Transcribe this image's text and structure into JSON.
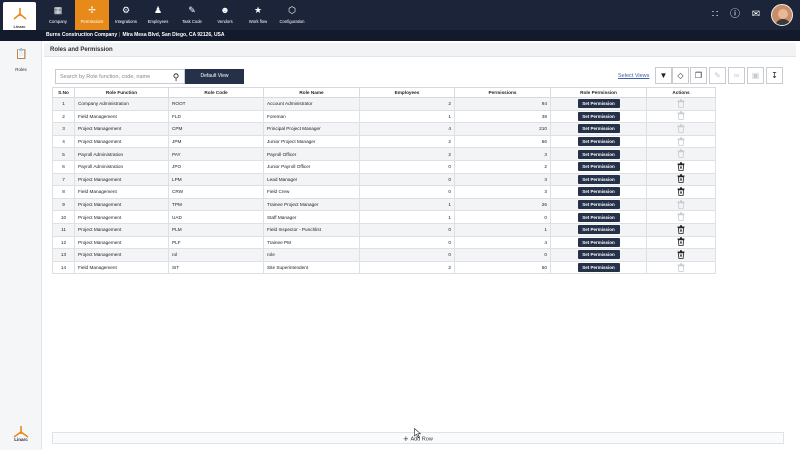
{
  "brand": {
    "name": "Linarc"
  },
  "nav": [
    {
      "label": "Company",
      "icon": "building-icon",
      "active": false
    },
    {
      "label": "Permissions",
      "icon": "permissions-icon",
      "active": true
    },
    {
      "label": "Integrations",
      "icon": "integrations-icon",
      "active": false
    },
    {
      "label": "Employees",
      "icon": "employees-icon",
      "active": false
    },
    {
      "label": "Task Code",
      "icon": "task-code-icon",
      "active": false
    },
    {
      "label": "Vendors",
      "icon": "vendors-icon",
      "active": false
    },
    {
      "label": "Work flow",
      "icon": "workflow-icon",
      "active": false
    },
    {
      "label": "Configuration",
      "icon": "configuration-icon",
      "active": false
    }
  ],
  "company": {
    "name": "Burns Construction Company",
    "address": "Mira Mesa Blvd, San Diego, CA 92126, USA"
  },
  "sidebar": {
    "roles_label": "Roles"
  },
  "page": {
    "title": "Roles and Permission"
  },
  "search": {
    "placeholder": "Search by Role function, code, name"
  },
  "toolbar": {
    "default_view": "Default View",
    "select_views": "Select Views"
  },
  "table": {
    "headers": [
      "S.No",
      "Role Function",
      "Role Code",
      "Role Name",
      "Employees",
      "Permissions",
      "Role Permission",
      "Actions"
    ],
    "button_label": "Set Permission",
    "rows": [
      {
        "sno": "1",
        "function": "Company Administration",
        "code": "ROOT",
        "name": "Account Administrator",
        "employees": "2",
        "permissions": "94",
        "delete_enabled": false
      },
      {
        "sno": "2",
        "function": "Field Management",
        "code": "FLD",
        "name": "Foreman",
        "employees": "1",
        "permissions": "38",
        "delete_enabled": false
      },
      {
        "sno": "3",
        "function": "Project Management",
        "code": "CPM",
        "name": "Principal Project Manager",
        "employees": "4",
        "permissions": "210",
        "delete_enabled": false
      },
      {
        "sno": "4",
        "function": "Project Management",
        "code": "JPM",
        "name": "Junior Project Manager",
        "employees": "2",
        "permissions": "66",
        "delete_enabled": false
      },
      {
        "sno": "5",
        "function": "Payroll Administration",
        "code": "PAY",
        "name": "Payroll Officer",
        "employees": "2",
        "permissions": "3",
        "delete_enabled": false
      },
      {
        "sno": "6",
        "function": "Payroll Administration",
        "code": "JPO",
        "name": "Junior Payroll Officer",
        "employees": "0",
        "permissions": "2",
        "delete_enabled": true
      },
      {
        "sno": "7",
        "function": "Project Management",
        "code": "LPM",
        "name": "Lead Manager",
        "employees": "0",
        "permissions": "3",
        "delete_enabled": true
      },
      {
        "sno": "8",
        "function": "Field Management",
        "code": "CRW",
        "name": "Field Crew",
        "employees": "0",
        "permissions": "3",
        "delete_enabled": true
      },
      {
        "sno": "9",
        "function": "Project Management",
        "code": "TPM",
        "name": "Trainee Project Manager",
        "employees": "1",
        "permissions": "26",
        "delete_enabled": false
      },
      {
        "sno": "10",
        "function": "Project Management",
        "code": "UAD",
        "name": "Staff Manager",
        "employees": "1",
        "permissions": "0",
        "delete_enabled": false
      },
      {
        "sno": "11",
        "function": "Project Management",
        "code": "PLM",
        "name": "Field Inspector - Punchlist",
        "employees": "0",
        "permissions": "1",
        "delete_enabled": true
      },
      {
        "sno": "12",
        "function": "Project Management",
        "code": "PLF",
        "name": "Trainee PM",
        "employees": "0",
        "permissions": "4",
        "delete_enabled": true
      },
      {
        "sno": "13",
        "function": "Project Management",
        "code": "rol",
        "name": "role",
        "employees": "0",
        "permissions": "0",
        "delete_enabled": true
      },
      {
        "sno": "14",
        "function": "Field Management",
        "code": "SIT",
        "name": "Site Superintendent",
        "employees": "2",
        "permissions": "50",
        "delete_enabled": false
      }
    ]
  },
  "add_row": {
    "label": "Add Row"
  },
  "colors": {
    "topbar": "#1b2438",
    "active_tab": "#e88a1a",
    "primary_button": "#253149"
  }
}
